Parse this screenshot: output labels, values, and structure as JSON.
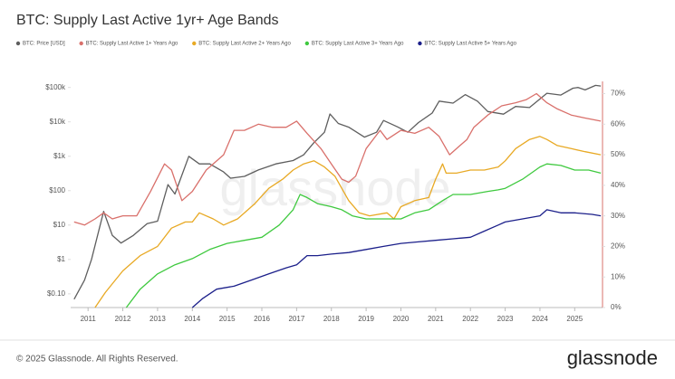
{
  "chart_data": {
    "type": "line",
    "title": "BTC: Supply Last Active 1yr+ Age Bands",
    "watermark": "glassnode",
    "footer": "© 2025 Glassnode. All Rights Reserved.",
    "logo": "glassnode",
    "log_y": true,
    "grid": false,
    "legend": "top",
    "xlim": [
      2010.5,
      2025.8
    ],
    "xticks": [
      2011,
      2012,
      2013,
      2014,
      2015,
      2016,
      2017,
      2018,
      2019,
      2020,
      2021,
      2022,
      2023,
      2024,
      2025
    ],
    "ylim": [
      0.04,
      150000
    ],
    "yticks": [
      {
        "value": 0.1,
        "label": "$0.10"
      },
      {
        "value": 1,
        "label": "$1"
      },
      {
        "value": 10,
        "label": "$10"
      },
      {
        "value": 100,
        "label": "$100"
      },
      {
        "value": 1000,
        "label": "$1k"
      },
      {
        "value": 10000,
        "label": "$10k"
      },
      {
        "value": 100000,
        "label": "$100k"
      }
    ],
    "y2lim": [
      0,
      74
    ],
    "y2ticks": [
      {
        "value": 0,
        "label": "0%"
      },
      {
        "value": 10,
        "label": "10%"
      },
      {
        "value": 20,
        "label": "20%"
      },
      {
        "value": 30,
        "label": "30%"
      },
      {
        "value": 40,
        "label": "40%"
      },
      {
        "value": 50,
        "label": "50%"
      },
      {
        "value": 60,
        "label": "60%"
      },
      {
        "value": 70,
        "label": "70%"
      }
    ],
    "series": [
      {
        "name": "BTC: Price [USD]",
        "color": "#5e5e5e",
        "axis": "y",
        "x": [
          2010.6,
          2010.9,
          2011.1,
          2011.45,
          2011.7,
          2011.95,
          2012.3,
          2012.7,
          2013.0,
          2013.3,
          2013.5,
          2013.9,
          2014.2,
          2014.5,
          2014.9,
          2015.1,
          2015.5,
          2015.9,
          2016.4,
          2016.9,
          2017.2,
          2017.5,
          2017.8,
          2017.96,
          2018.2,
          2018.5,
          2018.95,
          2019.3,
          2019.5,
          2019.9,
          2020.2,
          2020.5,
          2020.9,
          2021.1,
          2021.5,
          2021.85,
          2022.2,
          2022.5,
          2022.95,
          2023.3,
          2023.7,
          2023.95,
          2024.2,
          2024.6,
          2024.95,
          2025.1,
          2025.3,
          2025.6,
          2025.75
        ],
        "values": [
          0.07,
          0.25,
          1,
          25,
          5,
          3,
          5,
          11,
          13,
          150,
          80,
          1000,
          600,
          600,
          350,
          230,
          260,
          400,
          600,
          750,
          1100,
          2500,
          5000,
          17000,
          9000,
          7000,
          3600,
          5000,
          11000,
          7200,
          5000,
          9500,
          18000,
          40000,
          35000,
          62000,
          40000,
          20000,
          16800,
          28000,
          26000,
          42000,
          68000,
          60000,
          95000,
          100000,
          85000,
          115000,
          110000
        ]
      },
      {
        "name": "BTC: Supply Last Active 1+ Years Ago",
        "color": "#d9706b",
        "axis": "y2",
        "x": [
          2010.6,
          2010.9,
          2011.2,
          2011.45,
          2011.7,
          2012.0,
          2012.4,
          2012.8,
          2013.2,
          2013.4,
          2013.7,
          2014.0,
          2014.4,
          2014.9,
          2015.2,
          2015.5,
          2015.9,
          2016.3,
          2016.7,
          2017.0,
          2017.3,
          2017.7,
          2018.0,
          2018.3,
          2018.5,
          2018.7,
          2019.0,
          2019.4,
          2019.6,
          2020.0,
          2020.4,
          2020.8,
          2021.1,
          2021.4,
          2021.7,
          2021.9,
          2022.1,
          2022.5,
          2022.9,
          2023.3,
          2023.6,
          2023.9,
          2024.2,
          2024.5,
          2024.9,
          2025.3,
          2025.75
        ],
        "values": [
          28,
          27,
          29,
          31,
          29,
          30,
          30,
          38,
          47,
          45,
          35,
          38,
          45,
          50,
          58,
          58,
          60,
          59,
          59,
          61,
          57,
          52,
          47,
          42,
          41,
          43,
          52,
          58,
          55,
          58,
          57,
          59,
          56,
          50,
          53,
          55,
          59,
          63,
          66,
          67,
          68,
          70,
          67,
          65,
          63,
          62,
          61
        ]
      },
      {
        "name": "BTC: Supply Last Active 2+ Years Ago",
        "color": "#e8a924",
        "axis": "y2",
        "x": [
          2011.2,
          2011.5,
          2012.0,
          2012.5,
          2013.0,
          2013.4,
          2013.8,
          2014.0,
          2014.2,
          2014.6,
          2014.9,
          2015.3,
          2015.8,
          2016.2,
          2016.6,
          2016.9,
          2017.2,
          2017.5,
          2017.8,
          2018.1,
          2018.5,
          2018.8,
          2019.1,
          2019.6,
          2019.8,
          2020.0,
          2020.4,
          2020.8,
          2021.0,
          2021.2,
          2021.3,
          2021.6,
          2022.0,
          2022.4,
          2022.8,
          2023.0,
          2023.3,
          2023.7,
          2024.0,
          2024.2,
          2024.5,
          2024.9,
          2025.3,
          2025.75
        ],
        "values": [
          0,
          5,
          12,
          17,
          20,
          26,
          28,
          28,
          31,
          29,
          27,
          29,
          34,
          39,
          42,
          45,
          47,
          48,
          46,
          43,
          35,
          31,
          30,
          31,
          29,
          33,
          35,
          36,
          42,
          47,
          44,
          44,
          45,
          45,
          46,
          48,
          52,
          55,
          56,
          55,
          53,
          52,
          51,
          50
        ]
      },
      {
        "name": "BTC: Supply Last Active 3+ Years Ago",
        "color": "#3fc93f",
        "axis": "y2",
        "x": [
          2012.1,
          2012.5,
          2013.0,
          2013.5,
          2014.0,
          2014.5,
          2015.0,
          2015.5,
          2016.0,
          2016.5,
          2016.9,
          2017.1,
          2017.3,
          2017.6,
          2018.0,
          2018.3,
          2018.6,
          2019.0,
          2019.6,
          2020.0,
          2020.4,
          2020.8,
          2021.2,
          2021.5,
          2022.0,
          2022.5,
          2022.8,
          2023.0,
          2023.5,
          2024.0,
          2024.2,
          2024.6,
          2025.0,
          2025.4,
          2025.75
        ],
        "values": [
          0,
          6,
          11,
          14,
          16,
          19,
          21,
          22,
          23,
          27,
          32,
          37,
          36,
          34,
          33,
          32,
          30,
          29,
          29,
          29,
          31,
          32,
          35,
          37,
          37,
          38,
          38.5,
          39,
          42,
          46,
          47,
          46.5,
          45,
          45,
          44
        ]
      },
      {
        "name": "BTC: Supply Last Active 5+ Years Ago",
        "color": "#1b1f8a",
        "axis": "y2",
        "x": [
          2014.0,
          2014.3,
          2014.7,
          2015.2,
          2015.7,
          2016.2,
          2016.7,
          2017.0,
          2017.3,
          2017.6,
          2018.0,
          2018.5,
          2019.0,
          2019.5,
          2020.0,
          2020.5,
          2021.0,
          2021.5,
          2022.0,
          2022.4,
          2022.8,
          2023.0,
          2023.5,
          2024.0,
          2024.2,
          2024.6,
          2025.0,
          2025.5,
          2025.75
        ],
        "values": [
          0,
          3,
          6,
          7,
          9,
          11,
          13,
          14,
          17,
          17,
          17.5,
          18,
          19,
          20,
          21,
          21.5,
          22,
          22.5,
          23,
          25,
          27,
          28,
          29,
          30,
          32,
          31,
          31,
          30.5,
          30
        ]
      }
    ]
  }
}
